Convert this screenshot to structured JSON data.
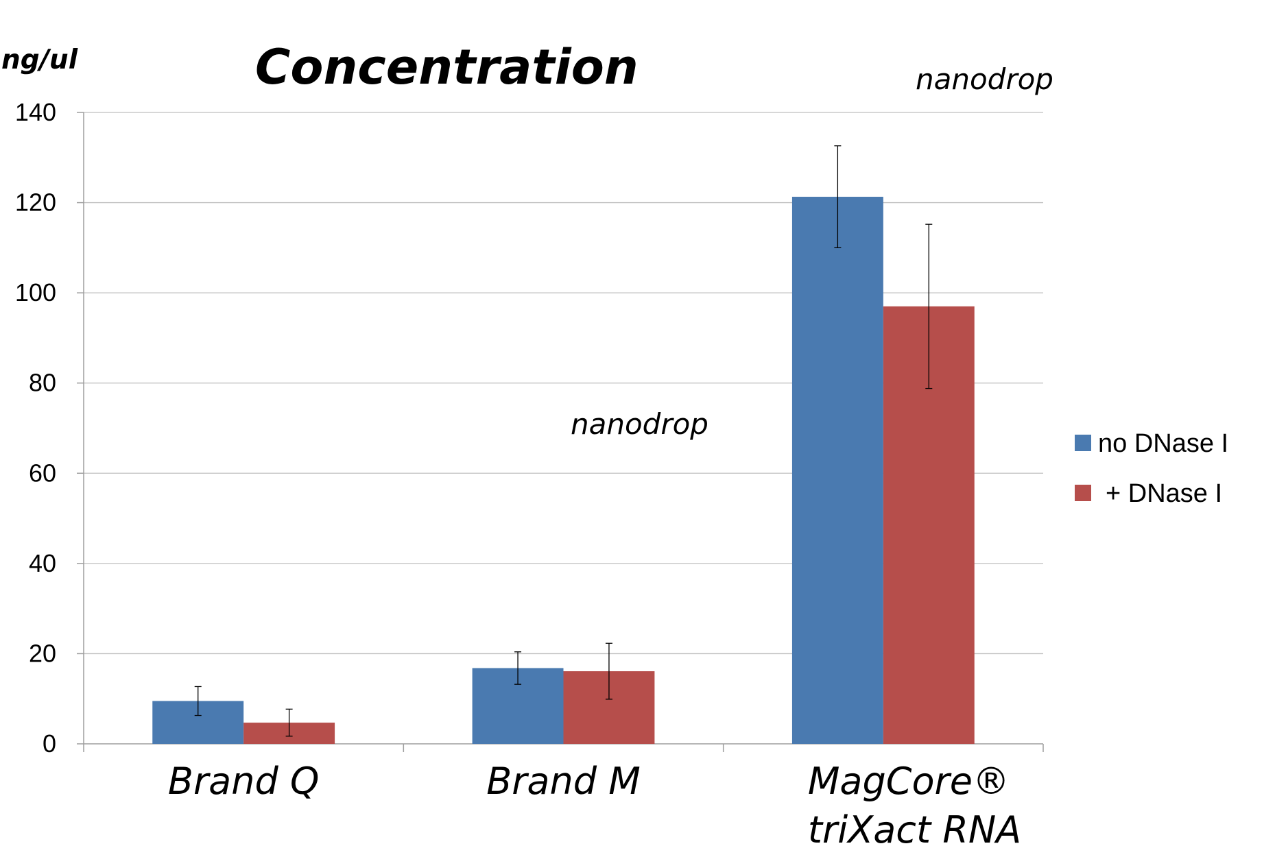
{
  "chart_data": {
    "type": "bar",
    "title": "Concentration",
    "unit_label": "ng/ul",
    "annotations": [
      "nanodrop",
      "nanodrop"
    ],
    "categories": [
      [
        "Brand Q"
      ],
      [
        "Brand M"
      ],
      [
        "MagCore®",
        "triXact RNA"
      ]
    ],
    "series": [
      {
        "name": "no DNase I",
        "color": "#4A7AB0",
        "values": [
          9.5,
          16.8,
          121.3
        ],
        "errors": [
          3.2,
          3.6,
          11.3
        ]
      },
      {
        "name": "+ DNase I",
        "color": "#B64E4B",
        "values": [
          4.7,
          16.1,
          97.0
        ],
        "errors": [
          3.0,
          6.2,
          18.2
        ]
      }
    ],
    "ylim": [
      0,
      140
    ],
    "yticks": [
      "0",
      "20",
      "40",
      "60",
      "80",
      "100",
      "120",
      "140"
    ],
    "grid": true,
    "legend_position": "right",
    "grid_color": "#BFBFBF",
    "axis_color": "#9E9E9E"
  }
}
